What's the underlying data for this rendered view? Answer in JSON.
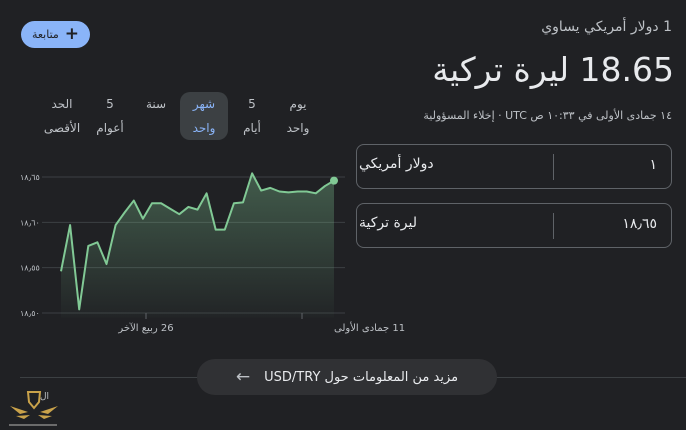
{
  "follow_button": {
    "label": "متابعة",
    "icon": "plus-icon"
  },
  "header": {
    "equals_text": "1 دولار أمريكي يساوي",
    "rate_value": "18.65",
    "rate_currency": "ليرة تركية",
    "timestamp": "١٤ جمادى الأولى في ١٠:٣٣ ص UTC",
    "separator": " · ",
    "disclaimer": "إخلاء المسؤولية"
  },
  "converter": {
    "from": {
      "value": "١",
      "currency": "دولار أمريكي"
    },
    "to": {
      "value": "١٨٫٦٥",
      "currency": "ليرة تركية"
    }
  },
  "range_tabs": [
    {
      "label": "يوم واحد",
      "selected": false
    },
    {
      "label": "5 أيام",
      "selected": false
    },
    {
      "label": "شهر واحد",
      "selected": true
    },
    {
      "label": "سنة",
      "selected": false
    },
    {
      "label": "5 أعوام",
      "selected": false
    },
    {
      "label": "الحد الأقصى",
      "selected": false
    }
  ],
  "colors": {
    "line": "#81c995",
    "accent": "#8ab4f8",
    "background": "#202124"
  },
  "chart_data": {
    "type": "area",
    "ylim": [
      18.5,
      18.65
    ],
    "y_ticks": [
      18.65,
      18.6,
      18.55,
      18.5
    ],
    "y_tick_labels": [
      "١٨٫٦٥",
      "١٨٫٦٠",
      "١٨٫٥٥",
      "١٨٫٥٠"
    ],
    "x_tick_labels": [
      "26 ربيع الآخر",
      "11 جمادى الأولى"
    ],
    "grid": true,
    "values": [
      18.546,
      18.597,
      18.504,
      18.574,
      18.578,
      18.554,
      18.597,
      18.611,
      18.624,
      18.604,
      18.621,
      18.621,
      18.615,
      18.609,
      18.617,
      18.614,
      18.632,
      18.592,
      18.592,
      18.621,
      18.622,
      18.654,
      18.635,
      18.638,
      18.634,
      18.633,
      18.634,
      18.634,
      18.632,
      18.64,
      18.646
    ]
  },
  "more_button": {
    "label": "مزيد من المعلومات حول USD/TRY",
    "icon": "arrow-left-icon"
  },
  "watermark": {
    "text": "الملاحظة"
  }
}
